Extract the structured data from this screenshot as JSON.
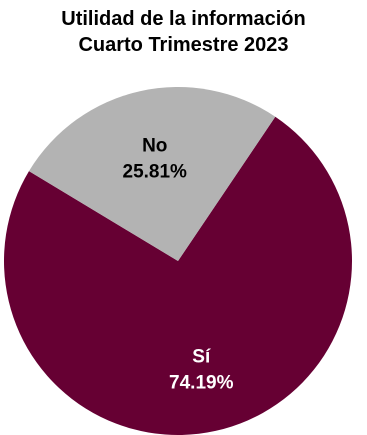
{
  "chart_data": {
    "type": "pie",
    "title": "Utilidad de la información",
    "subtitle": "Cuarto Trimestre 2023",
    "slices": [
      {
        "label": "Sí",
        "value": 74.19,
        "value_text": "74.19%",
        "color": "#660033",
        "text_color": "#ffffff"
      },
      {
        "label": "No",
        "value": 25.81,
        "value_text": "25.81%",
        "color": "#b3b3b3",
        "text_color": "#000000"
      }
    ]
  }
}
